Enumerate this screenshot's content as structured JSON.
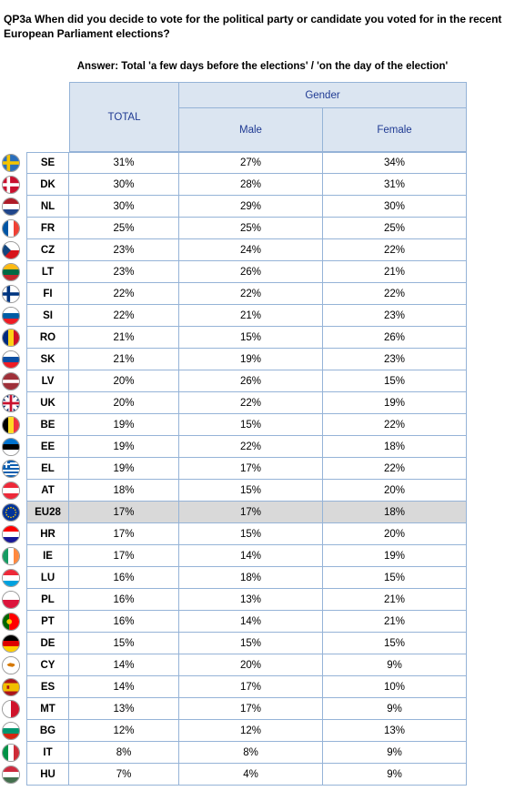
{
  "question": "QP3a When did you decide to vote for the political party or candidate you voted for in the recent European Parliament elections?",
  "answer": "Answer: Total 'a few days before the elections' / 'on the day of the election'",
  "headers": {
    "total": "TOTAL",
    "gender": "Gender",
    "male": "Male",
    "female": "Female"
  },
  "rows": [
    {
      "code": "SE",
      "total": "31%",
      "male": "27%",
      "female": "34%",
      "flag": "se-flag-icon"
    },
    {
      "code": "DK",
      "total": "30%",
      "male": "28%",
      "female": "31%",
      "flag": "dk-flag-icon"
    },
    {
      "code": "NL",
      "total": "30%",
      "male": "29%",
      "female": "30%",
      "flag": "nl-flag-icon"
    },
    {
      "code": "FR",
      "total": "25%",
      "male": "25%",
      "female": "25%",
      "flag": "fr-flag-icon"
    },
    {
      "code": "CZ",
      "total": "23%",
      "male": "24%",
      "female": "22%",
      "flag": "cz-flag-icon"
    },
    {
      "code": "LT",
      "total": "23%",
      "male": "26%",
      "female": "21%",
      "flag": "lt-flag-icon"
    },
    {
      "code": "FI",
      "total": "22%",
      "male": "22%",
      "female": "22%",
      "flag": "fi-flag-icon"
    },
    {
      "code": "SI",
      "total": "22%",
      "male": "21%",
      "female": "23%",
      "flag": "si-flag-icon"
    },
    {
      "code": "RO",
      "total": "21%",
      "male": "15%",
      "female": "26%",
      "flag": "ro-flag-icon"
    },
    {
      "code": "SK",
      "total": "21%",
      "male": "19%",
      "female": "23%",
      "flag": "sk-flag-icon"
    },
    {
      "code": "LV",
      "total": "20%",
      "male": "26%",
      "female": "15%",
      "flag": "lv-flag-icon"
    },
    {
      "code": "UK",
      "total": "20%",
      "male": "22%",
      "female": "19%",
      "flag": "uk-flag-icon"
    },
    {
      "code": "BE",
      "total": "19%",
      "male": "15%",
      "female": "22%",
      "flag": "be-flag-icon"
    },
    {
      "code": "EE",
      "total": "19%",
      "male": "22%",
      "female": "18%",
      "flag": "ee-flag-icon"
    },
    {
      "code": "EL",
      "total": "19%",
      "male": "17%",
      "female": "22%",
      "flag": "el-flag-icon"
    },
    {
      "code": "AT",
      "total": "18%",
      "male": "15%",
      "female": "20%",
      "flag": "at-flag-icon"
    },
    {
      "code": "EU28",
      "total": "17%",
      "male": "17%",
      "female": "18%",
      "flag": "eu-flag-icon",
      "highlight": true
    },
    {
      "code": "HR",
      "total": "17%",
      "male": "15%",
      "female": "20%",
      "flag": "hr-flag-icon"
    },
    {
      "code": "IE",
      "total": "17%",
      "male": "14%",
      "female": "19%",
      "flag": "ie-flag-icon"
    },
    {
      "code": "LU",
      "total": "16%",
      "male": "18%",
      "female": "15%",
      "flag": "lu-flag-icon"
    },
    {
      "code": "PL",
      "total": "16%",
      "male": "13%",
      "female": "21%",
      "flag": "pl-flag-icon"
    },
    {
      "code": "PT",
      "total": "16%",
      "male": "14%",
      "female": "21%",
      "flag": "pt-flag-icon"
    },
    {
      "code": "DE",
      "total": "15%",
      "male": "15%",
      "female": "15%",
      "flag": "de-flag-icon"
    },
    {
      "code": "CY",
      "total": "14%",
      "male": "20%",
      "female": "9%",
      "flag": "cy-flag-icon"
    },
    {
      "code": "ES",
      "total": "14%",
      "male": "17%",
      "female": "10%",
      "flag": "es-flag-icon"
    },
    {
      "code": "MT",
      "total": "13%",
      "male": "17%",
      "female": "9%",
      "flag": "mt-flag-icon"
    },
    {
      "code": "BG",
      "total": "12%",
      "male": "12%",
      "female": "13%",
      "flag": "bg-flag-icon"
    },
    {
      "code": "IT",
      "total": "8%",
      "male": "8%",
      "female": "9%",
      "flag": "it-flag-icon"
    },
    {
      "code": "HU",
      "total": "7%",
      "male": "4%",
      "female": "9%",
      "flag": "hu-flag-icon"
    }
  ],
  "flag_colors": {
    "SE": {
      "type": "nordic",
      "bg": "#2a6ebb",
      "cross": "#f5c400"
    },
    "DK": {
      "type": "nordic",
      "bg": "#c8102e",
      "cross": "#ffffff"
    },
    "NL": {
      "type": "h3",
      "c": [
        "#ae1c28",
        "#ffffff",
        "#21468b"
      ]
    },
    "FR": {
      "type": "v3",
      "c": [
        "#0055a4",
        "#ffffff",
        "#ef4135"
      ]
    },
    "CZ": {
      "type": "cz"
    },
    "LT": {
      "type": "h3",
      "c": [
        "#fdb913",
        "#006a44",
        "#c1272d"
      ]
    },
    "FI": {
      "type": "nordic",
      "bg": "#ffffff",
      "cross": "#003580"
    },
    "SI": {
      "type": "h3",
      "c": [
        "#ffffff",
        "#005da4",
        "#ed1c24"
      ]
    },
    "RO": {
      "type": "v3",
      "c": [
        "#002b7f",
        "#fcd116",
        "#ce1126"
      ]
    },
    "SK": {
      "type": "h3",
      "c": [
        "#ffffff",
        "#0b4ea2",
        "#ee1c25"
      ]
    },
    "LV": {
      "type": "lv"
    },
    "UK": {
      "type": "uk"
    },
    "BE": {
      "type": "v3",
      "c": [
        "#000000",
        "#fdda24",
        "#ef3340"
      ]
    },
    "EE": {
      "type": "h3",
      "c": [
        "#0072ce",
        "#000000",
        "#ffffff"
      ]
    },
    "EL": {
      "type": "gr"
    },
    "AT": {
      "type": "h3",
      "c": [
        "#ed2939",
        "#ffffff",
        "#ed2939"
      ]
    },
    "EU28": {
      "type": "eu"
    },
    "HR": {
      "type": "h3",
      "c": [
        "#ff0000",
        "#ffffff",
        "#171796"
      ]
    },
    "IE": {
      "type": "v3",
      "c": [
        "#169b62",
        "#ffffff",
        "#ff883e"
      ]
    },
    "LU": {
      "type": "h3",
      "c": [
        "#ed2939",
        "#ffffff",
        "#00a1de"
      ]
    },
    "PL": {
      "type": "h2",
      "c": [
        "#ffffff",
        "#dc143c"
      ]
    },
    "PT": {
      "type": "pt"
    },
    "DE": {
      "type": "h3",
      "c": [
        "#000000",
        "#dd0000",
        "#ffce00"
      ]
    },
    "CY": {
      "type": "cy"
    },
    "ES": {
      "type": "es"
    },
    "MT": {
      "type": "v2",
      "c": [
        "#ffffff",
        "#cf142b"
      ]
    },
    "BG": {
      "type": "h3",
      "c": [
        "#ffffff",
        "#00966e",
        "#d62612"
      ]
    },
    "IT": {
      "type": "v3",
      "c": [
        "#009246",
        "#ffffff",
        "#ce2b37"
      ]
    },
    "HU": {
      "type": "h3",
      "c": [
        "#cd2a3e",
        "#ffffff",
        "#436f4d"
      ]
    }
  }
}
